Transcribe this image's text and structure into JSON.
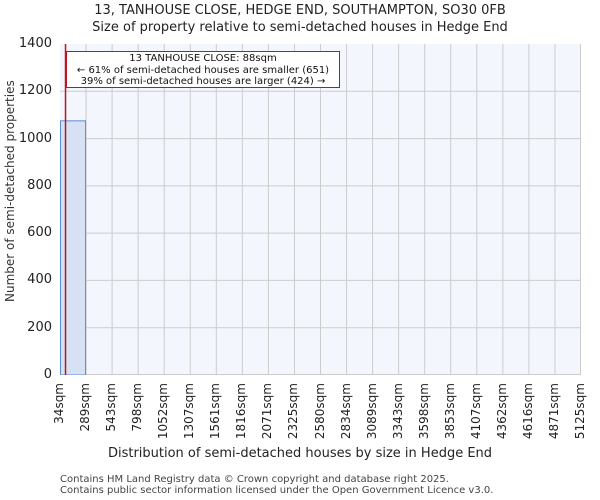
{
  "title": {
    "line1": "13, TANHOUSE CLOSE, HEDGE END, SOUTHAMPTON, SO30 0FB",
    "line2": "Size of property relative to semi-detached houses in Hedge End"
  },
  "annotation": {
    "line1": "13 TANHOUSE CLOSE: 88sqm",
    "line2": "← 61% of semi-detached houses are smaller (651)",
    "line3": "39% of semi-detached houses are larger (424) →"
  },
  "axes": {
    "ylabel": "Number of semi-detached properties",
    "xlabel": "Distribution of semi-detached houses by size in Hedge End",
    "yticks": [
      "0",
      "200",
      "400",
      "600",
      "800",
      "1000",
      "1200",
      "1400"
    ],
    "xticks": [
      "34sqm",
      "289sqm",
      "543sqm",
      "798sqm",
      "1052sqm",
      "1307sqm",
      "1561sqm",
      "1816sqm",
      "2071sqm",
      "2325sqm",
      "2580sqm",
      "2834sqm",
      "3089sqm",
      "3343sqm",
      "3598sqm",
      "3853sqm",
      "4107sqm",
      "4362sqm",
      "4616sqm",
      "4871sqm",
      "5125sqm"
    ]
  },
  "footer": {
    "line1": "Contains HM Land Registry data © Crown copyright and database right 2025.",
    "line2": "Contains public sector information licensed under the Open Government Licence v3.0."
  },
  "colors": {
    "bar_fill": "#d6e2f3",
    "bar_edge": "#5b8bd0",
    "marker_line": "#c0131d",
    "plot_bg": "#f3f6fd",
    "grid": "#cccccc"
  },
  "chart_data": {
    "type": "bar",
    "title": "13, TANHOUSE CLOSE, HEDGE END, SOUTHAMPTON, SO30 0FB — Size of property relative to semi-detached houses in Hedge End",
    "xlabel": "Distribution of semi-detached houses by size in Hedge End",
    "ylabel": "Number of semi-detached properties",
    "categories": [
      "34sqm",
      "289sqm",
      "543sqm",
      "798sqm",
      "1052sqm",
      "1307sqm",
      "1561sqm",
      "1816sqm",
      "2071sqm",
      "2325sqm",
      "2580sqm",
      "2834sqm",
      "3089sqm",
      "3343sqm",
      "3598sqm",
      "3853sqm",
      "4107sqm",
      "4362sqm",
      "4616sqm",
      "4871sqm"
    ],
    "bin_edges": [
      34,
      289,
      543,
      798,
      1052,
      1307,
      1561,
      1816,
      2071,
      2325,
      2580,
      2834,
      3089,
      3343,
      3598,
      3853,
      4107,
      4362,
      4616,
      4871,
      5125
    ],
    "values": [
      1075,
      0,
      0,
      0,
      0,
      0,
      0,
      0,
      0,
      0,
      0,
      0,
      0,
      0,
      0,
      0,
      0,
      0,
      0,
      0
    ],
    "ylim": [
      0,
      1400
    ],
    "grid": true,
    "marker": {
      "x": 88,
      "label": "13 TANHOUSE CLOSE: 88sqm",
      "smaller_pct": 61,
      "smaller_count": 651,
      "larger_pct": 39,
      "larger_count": 424
    }
  }
}
